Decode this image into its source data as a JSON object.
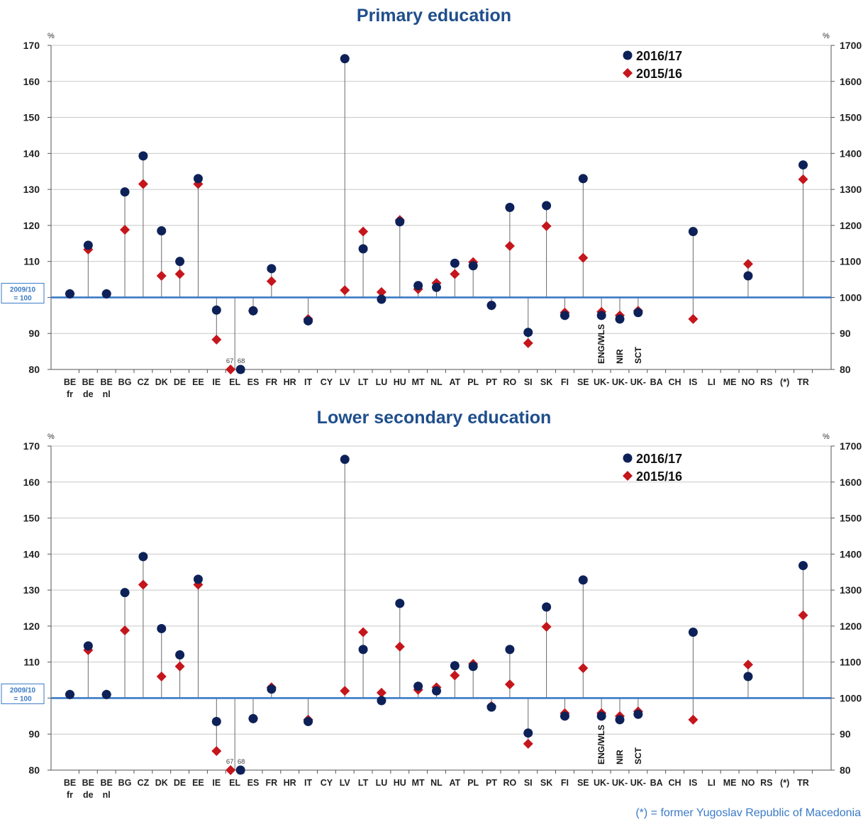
{
  "chart_data": [
    {
      "type": "scatter",
      "title": "Primary education",
      "unit_left": "%",
      "unit_right": "%",
      "y_ticks_left": [
        "170",
        "160",
        "150",
        "140",
        "130",
        "120",
        "110",
        "90",
        "80"
      ],
      "y_ticks_right": [
        "1700",
        "1600",
        "1500",
        "1400",
        "1300",
        "1200",
        "1100",
        "1000",
        "90",
        "80"
      ],
      "ylim": [
        80,
        170
      ],
      "baseline": 100,
      "baseline_label": [
        "2009/10",
        "= 100"
      ],
      "categories": [
        "BE fr",
        "BE de",
        "BE nl",
        "BG",
        "CZ",
        "DK",
        "DE",
        "EE",
        "IE",
        "EL",
        "ES",
        "FR",
        "HR",
        "IT",
        "CY",
        "LV",
        "LT",
        "LU",
        "HU",
        "MT",
        "NL",
        "AT",
        "PL",
        "PT",
        "RO",
        "SI",
        "SK",
        "FI",
        "SE",
        "UK-ENG/WLS",
        "UK-NIR",
        "UK-SCT",
        "BA",
        "CH",
        "IS",
        "LI",
        "ME",
        "NO",
        "RS",
        "(*)",
        "TR"
      ],
      "category_labels": [
        [
          "BE",
          "fr"
        ],
        [
          "BE",
          "de"
        ],
        [
          "BE",
          "nl"
        ],
        [
          "BG",
          ""
        ],
        [
          "CZ",
          ""
        ],
        [
          "DK",
          ""
        ],
        [
          "DE",
          ""
        ],
        [
          "EE",
          ""
        ],
        [
          "IE",
          ""
        ],
        [
          "EL",
          ""
        ],
        [
          "ES",
          ""
        ],
        [
          "FR",
          ""
        ],
        [
          "HR",
          ""
        ],
        [
          "IT",
          ""
        ],
        [
          "CY",
          ""
        ],
        [
          "LV",
          ""
        ],
        [
          "LT",
          ""
        ],
        [
          "LU",
          ""
        ],
        [
          "HU",
          ""
        ],
        [
          "MT",
          ""
        ],
        [
          "NL",
          ""
        ],
        [
          "AT",
          ""
        ],
        [
          "PL",
          ""
        ],
        [
          "PT",
          ""
        ],
        [
          "RO",
          ""
        ],
        [
          "SI",
          ""
        ],
        [
          "SK",
          ""
        ],
        [
          "FI",
          ""
        ],
        [
          "SE",
          ""
        ],
        [
          "UK-",
          ""
        ],
        [
          "UK-",
          ""
        ],
        [
          "UK-",
          ""
        ],
        [
          "BA",
          ""
        ],
        [
          "CH",
          ""
        ],
        [
          "IS",
          ""
        ],
        [
          "LI",
          ""
        ],
        [
          "ME",
          ""
        ],
        [
          "NO",
          ""
        ],
        [
          "RS",
          ""
        ],
        [
          "(*)",
          ""
        ],
        [
          "TR",
          ""
        ]
      ],
      "uk_labels": [
        "ENG/WLS",
        "NIR",
        "SCT"
      ],
      "el_values": [
        "67",
        "68"
      ],
      "series": [
        {
          "name": "2016/17",
          "color": "#0d2158",
          "marker": "circle",
          "values": [
            101,
            114.5,
            101,
            129.3,
            139.3,
            118.5,
            110,
            133,
            96.5,
            80,
            96.3,
            108,
            null,
            93.5,
            null,
            166.3,
            113.5,
            99.5,
            121,
            103.3,
            102.8,
            109.5,
            108.8,
            97.8,
            125,
            90.3,
            125.5,
            95,
            133,
            95,
            94,
            95.8,
            null,
            null,
            118.3,
            null,
            null,
            106,
            null,
            null,
            136.8
          ]
        },
        {
          "name": "2015/16",
          "color": "#c4161c",
          "marker": "diamond",
          "values": [
            101,
            113.3,
            101,
            118.8,
            131.5,
            106,
            106.5,
            131.5,
            88.3,
            80,
            96.3,
            104.5,
            null,
            94,
            null,
            102,
            118.3,
            101.5,
            121.5,
            102.3,
            104,
            106.5,
            109.8,
            97.8,
            114.3,
            87.3,
            119.8,
            95.8,
            111,
            96,
            95,
            96.3,
            null,
            null,
            94,
            null,
            null,
            109.3,
            null,
            null,
            132.8
          ]
        }
      ]
    },
    {
      "type": "scatter",
      "title": "Lower secondary education",
      "unit_left": "%",
      "unit_right": "%",
      "y_ticks_left": [
        "170",
        "160",
        "150",
        "140",
        "130",
        "120",
        "110",
        "90",
        "80"
      ],
      "y_ticks_right": [
        "1700",
        "1600",
        "1500",
        "1400",
        "1300",
        "1200",
        "1100",
        "1000",
        "90",
        "80"
      ],
      "ylim": [
        80,
        170
      ],
      "baseline": 100,
      "baseline_label": [
        "2009/10",
        "= 100"
      ],
      "categories": [
        "BE fr",
        "BE de",
        "BE nl",
        "BG",
        "CZ",
        "DK",
        "DE",
        "EE",
        "IE",
        "EL",
        "ES",
        "FR",
        "HR",
        "IT",
        "CY",
        "LV",
        "LT",
        "LU",
        "HU",
        "MT",
        "NL",
        "AT",
        "PL",
        "PT",
        "RO",
        "SI",
        "SK",
        "FI",
        "SE",
        "UK-ENG/WLS",
        "UK-NIR",
        "UK-SCT",
        "BA",
        "CH",
        "IS",
        "LI",
        "ME",
        "NO",
        "RS",
        "(*)",
        "TR"
      ],
      "category_labels": [
        [
          "BE",
          "fr"
        ],
        [
          "BE",
          "de"
        ],
        [
          "BE",
          "nl"
        ],
        [
          "BG",
          ""
        ],
        [
          "CZ",
          ""
        ],
        [
          "DK",
          ""
        ],
        [
          "DE",
          ""
        ],
        [
          "EE",
          ""
        ],
        [
          "IE",
          ""
        ],
        [
          "EL",
          ""
        ],
        [
          "ES",
          ""
        ],
        [
          "FR",
          ""
        ],
        [
          "HR",
          ""
        ],
        [
          "IT",
          ""
        ],
        [
          "CY",
          ""
        ],
        [
          "LV",
          ""
        ],
        [
          "LT",
          ""
        ],
        [
          "LU",
          ""
        ],
        [
          "HU",
          ""
        ],
        [
          "MT",
          ""
        ],
        [
          "NL",
          ""
        ],
        [
          "AT",
          ""
        ],
        [
          "PL",
          ""
        ],
        [
          "PT",
          ""
        ],
        [
          "RO",
          ""
        ],
        [
          "SI",
          ""
        ],
        [
          "SK",
          ""
        ],
        [
          "FI",
          ""
        ],
        [
          "SE",
          ""
        ],
        [
          "UK-",
          ""
        ],
        [
          "UK-",
          ""
        ],
        [
          "UK-",
          ""
        ],
        [
          "BA",
          ""
        ],
        [
          "CH",
          ""
        ],
        [
          "IS",
          ""
        ],
        [
          "LI",
          ""
        ],
        [
          "ME",
          ""
        ],
        [
          "NO",
          ""
        ],
        [
          "RS",
          ""
        ],
        [
          "(*)",
          ""
        ],
        [
          "TR",
          ""
        ]
      ],
      "uk_labels": [
        "ENG/WLS",
        "NIR",
        "SCT"
      ],
      "el_values": [
        "67",
        "68"
      ],
      "series": [
        {
          "name": "2016/17",
          "color": "#0d2158",
          "marker": "circle",
          "values": [
            101,
            114.5,
            101,
            129.3,
            139.3,
            119.3,
            112,
            133,
            93.5,
            80,
            94.3,
            102.5,
            null,
            93.5,
            null,
            166.3,
            113.5,
            99.3,
            126.3,
            103.3,
            102,
            109,
            108.8,
            97.5,
            113.5,
            90.3,
            125.3,
            95,
            132.8,
            95,
            94,
            95.5,
            null,
            null,
            118.3,
            null,
            null,
            106,
            null,
            null,
            136.8
          ]
        },
        {
          "name": "2015/16",
          "color": "#c4161c",
          "marker": "diamond",
          "values": [
            101,
            113.3,
            101,
            118.8,
            131.5,
            106,
            108.8,
            131.5,
            85.3,
            80,
            94.3,
            103,
            null,
            94,
            null,
            102,
            118.3,
            101.5,
            114.3,
            102.3,
            103,
            106.3,
            109.5,
            97.8,
            103.8,
            87.3,
            119.8,
            95.8,
            108.3,
            95.8,
            95,
            96.3,
            null,
            null,
            94,
            null,
            null,
            109.3,
            null,
            null,
            123
          ]
        }
      ]
    }
  ],
  "footnote": "(*) = former Yugoslav Republic of Macedonia"
}
